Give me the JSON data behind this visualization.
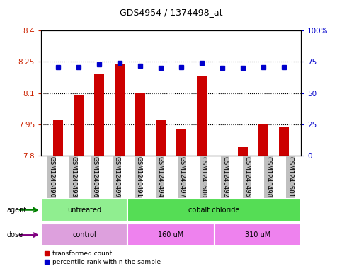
{
  "title": "GDS4954 / 1374498_at",
  "samples": [
    "GSM1240490",
    "GSM1240493",
    "GSM1240496",
    "GSM1240499",
    "GSM1240491",
    "GSM1240494",
    "GSM1240497",
    "GSM1240500",
    "GSM1240492",
    "GSM1240495",
    "GSM1240498",
    "GSM1240501"
  ],
  "red_values": [
    7.97,
    8.09,
    8.19,
    8.24,
    8.1,
    7.97,
    7.93,
    8.18,
    7.8,
    7.84,
    7.95,
    7.94
  ],
  "blue_values": [
    71,
    71,
    73,
    74,
    72,
    70,
    71,
    74,
    70,
    70,
    71,
    71
  ],
  "ylim": [
    7.8,
    8.4
  ],
  "yticks_left": [
    7.8,
    7.95,
    8.1,
    8.25,
    8.4
  ],
  "yticks_right": [
    0,
    25,
    50,
    75,
    100
  ],
  "ytick_labels_right": [
    "0",
    "25",
    "50",
    "75",
    "100%"
  ],
  "hlines": [
    7.95,
    8.1,
    8.25
  ],
  "agent_groups": [
    {
      "label": "untreated",
      "start": 0,
      "end": 4,
      "color": "#90EE90"
    },
    {
      "label": "cobalt chloride",
      "start": 4,
      "end": 12,
      "color": "#55DD55"
    }
  ],
  "dose_groups": [
    {
      "label": "control",
      "start": 0,
      "end": 4,
      "color": "#DDA0DD"
    },
    {
      "label": "160 uM",
      "start": 4,
      "end": 8,
      "color": "#EE82EE"
    },
    {
      "label": "310 uM",
      "start": 8,
      "end": 12,
      "color": "#EE82EE"
    }
  ],
  "bar_color": "#CC0000",
  "dot_color": "#0000CC",
  "tick_label_color_left": "#CC2200",
  "tick_label_color_right": "#0000CC",
  "legend_red": "transformed count",
  "legend_blue": "percentile rank within the sample",
  "bar_width": 0.5,
  "plot_bg_color": "#ffffff",
  "label_bg_color": "#C0C0C0"
}
